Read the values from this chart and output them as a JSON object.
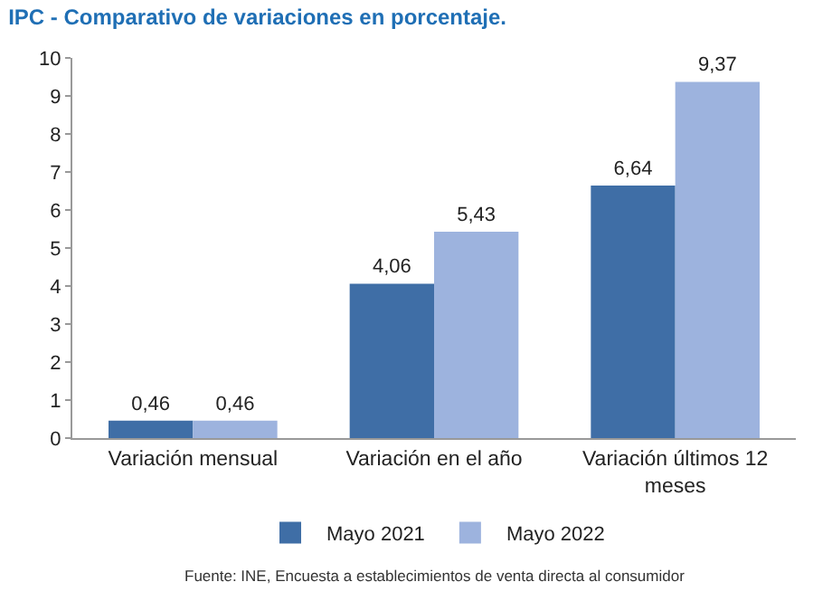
{
  "chart_data": {
    "type": "bar",
    "title": "IPC - Comparativo de variaciones en porcentaje.",
    "categories": [
      "Variación mensual",
      "Variación en el año",
      "Variación últimos 12 meses"
    ],
    "series": [
      {
        "name": "Mayo 2021",
        "color": "#3f6ea6",
        "values": [
          0.46,
          4.06,
          6.64
        ],
        "value_labels": [
          "0,46",
          "4,06",
          "6,64"
        ]
      },
      {
        "name": "Mayo 2022",
        "color": "#9db3de",
        "values": [
          0.46,
          5.43,
          9.37
        ],
        "value_labels": [
          "0,46",
          "5,43",
          "9,37"
        ]
      }
    ],
    "ylim": [
      0,
      10
    ],
    "yticks": [
      0,
      1,
      2,
      3,
      4,
      5,
      6,
      7,
      8,
      9,
      10
    ],
    "grid": false,
    "legend": "bottom",
    "annotations": [
      "Fuente: INE, Encuesta a establecimientos de venta directa al consumidor"
    ]
  }
}
